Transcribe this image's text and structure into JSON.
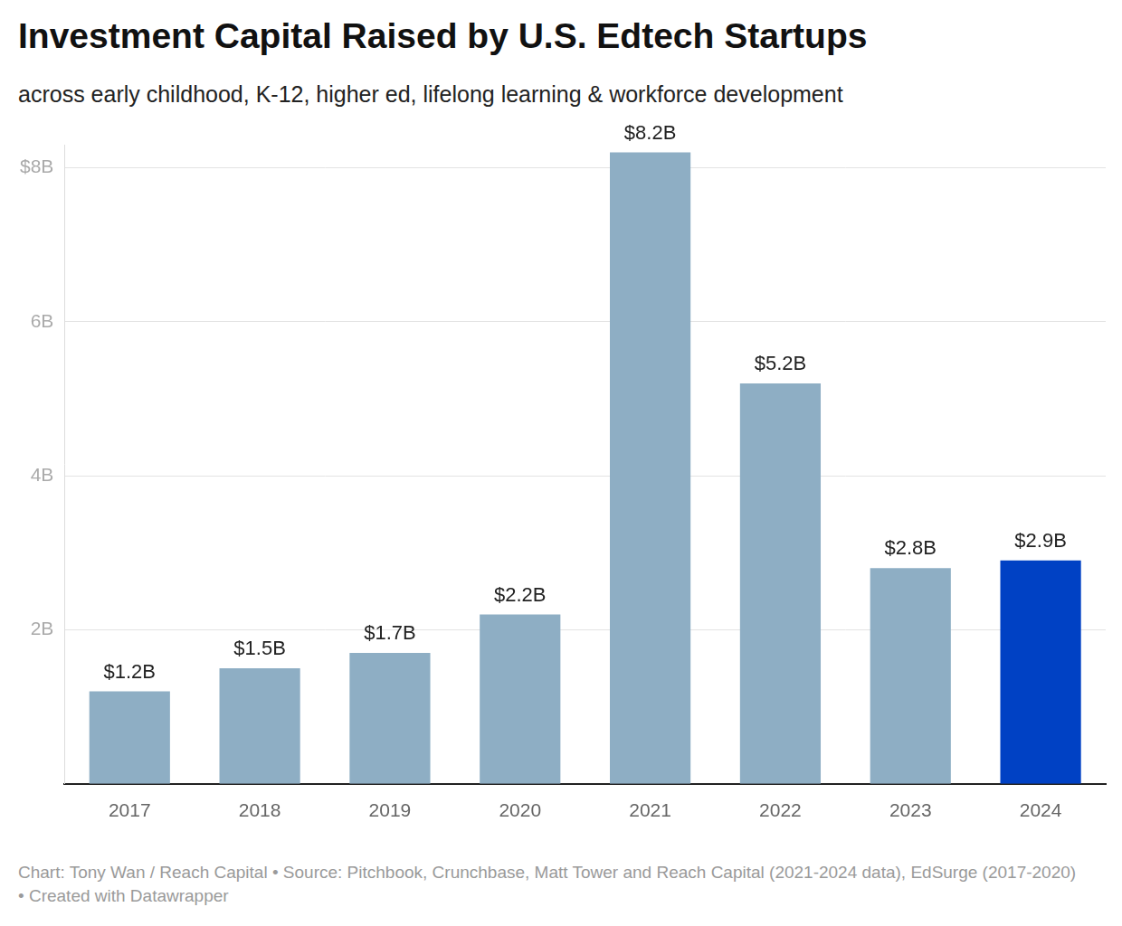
{
  "chart_data": {
    "type": "bar",
    "title": "Investment Capital Raised by U.S. Edtech Startups",
    "subtitle": "across early childhood, K-12, higher ed, lifelong learning & workforce development",
    "source": "Chart: Tony Wan / Reach Capital • Source: Pitchbook, Crunchbase, Matt Tower and Reach Capital (2021-2024 data), EdSurge (2017-2020) • Created with Datawrapper",
    "categories": [
      "2017",
      "2018",
      "2019",
      "2020",
      "2021",
      "2022",
      "2023",
      "2024"
    ],
    "values": [
      1.2,
      1.5,
      1.7,
      2.2,
      8.2,
      5.2,
      2.8,
      2.9
    ],
    "value_labels": [
      "$1.2B",
      "$1.5B",
      "$1.7B",
      "$2.2B",
      "$8.2B",
      "$5.2B",
      "$2.8B",
      "$2.9B"
    ],
    "colors": [
      "#8eaec4",
      "#8eaec4",
      "#8eaec4",
      "#8eaec4",
      "#8eaec4",
      "#8eaec4",
      "#8eaec4",
      "#0041c4"
    ],
    "ylim": [
      0,
      8.3
    ],
    "yticks": [
      {
        "value": 2,
        "label": "2B"
      },
      {
        "value": 4,
        "label": "4B"
      },
      {
        "value": 6,
        "label": "6B"
      },
      {
        "value": 8,
        "label": "$8B"
      }
    ],
    "grid": true,
    "data_labels": true
  }
}
